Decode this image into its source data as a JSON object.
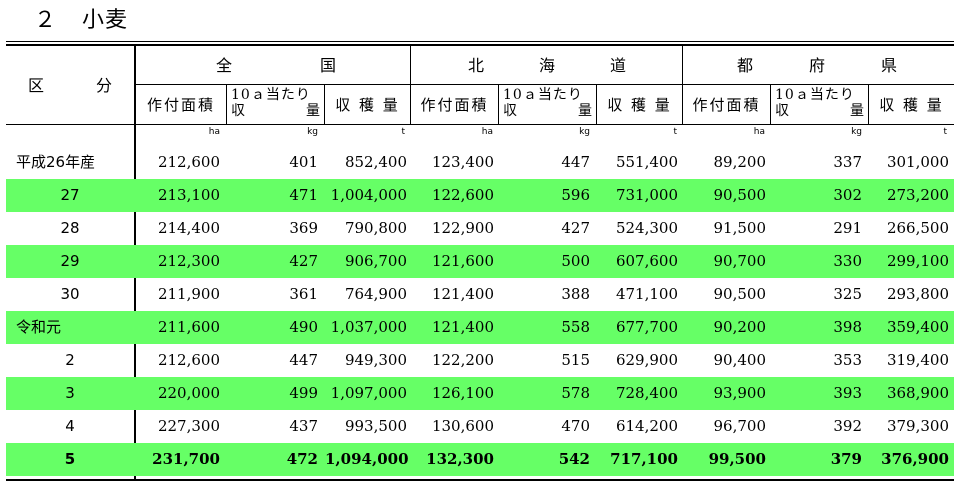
{
  "title": {
    "number": "２",
    "name": "小麦"
  },
  "header": {
    "category": "区　分",
    "groups": [
      {
        "chars": [
          "全",
          "国"
        ]
      },
      {
        "chars": [
          "北",
          "海",
          "道"
        ]
      },
      {
        "chars": [
          "都",
          "府",
          "県"
        ]
      }
    ],
    "subheaders": {
      "area": "作付面積",
      "yield_line1": "10ａ当たり",
      "yield_line2a": "収",
      "yield_line2b": "量",
      "production": "収 穫 量"
    },
    "units": [
      "ha",
      "kg",
      "t",
      "ha",
      "kg",
      "t",
      "ha",
      "kg",
      "t"
    ]
  },
  "rows": [
    {
      "label": "平成26年産",
      "values": [
        "212,600",
        "401",
        "852,400",
        "123,400",
        "447",
        "551,400",
        "89,200",
        "337",
        "301,000"
      ]
    },
    {
      "label": "27",
      "values": [
        "213,100",
        "471",
        "1,004,000",
        "122,600",
        "596",
        "731,000",
        "90,500",
        "302",
        "273,200"
      ]
    },
    {
      "label": "28",
      "values": [
        "214,400",
        "369",
        "790,800",
        "122,900",
        "427",
        "524,300",
        "91,500",
        "291",
        "266,500"
      ]
    },
    {
      "label": "29",
      "values": [
        "212,300",
        "427",
        "906,700",
        "121,600",
        "500",
        "607,600",
        "90,700",
        "330",
        "299,100"
      ]
    },
    {
      "label": "30",
      "values": [
        "211,900",
        "361",
        "764,900",
        "121,400",
        "388",
        "471,100",
        "90,500",
        "325",
        "293,800"
      ]
    },
    {
      "label": "令和元",
      "values": [
        "211,600",
        "490",
        "1,037,000",
        "121,400",
        "558",
        "677,700",
        "90,200",
        "398",
        "359,400"
      ]
    },
    {
      "label": "2",
      "values": [
        "212,600",
        "447",
        "949,300",
        "122,200",
        "515",
        "629,900",
        "90,400",
        "353",
        "319,400"
      ]
    },
    {
      "label": "3",
      "values": [
        "220,000",
        "499",
        "1,097,000",
        "126,100",
        "578",
        "728,400",
        "93,900",
        "393",
        "368,900"
      ]
    },
    {
      "label": "4",
      "values": [
        "227,300",
        "437",
        "993,500",
        "130,600",
        "470",
        "614,200",
        "96,700",
        "392",
        "379,300"
      ]
    },
    {
      "label": "5",
      "values": [
        "231,700",
        "472",
        "1,094,000",
        "132,300",
        "542",
        "717,100",
        "99,500",
        "379",
        "376,900"
      ]
    }
  ],
  "colors": {
    "highlight": "#66ff66"
  }
}
